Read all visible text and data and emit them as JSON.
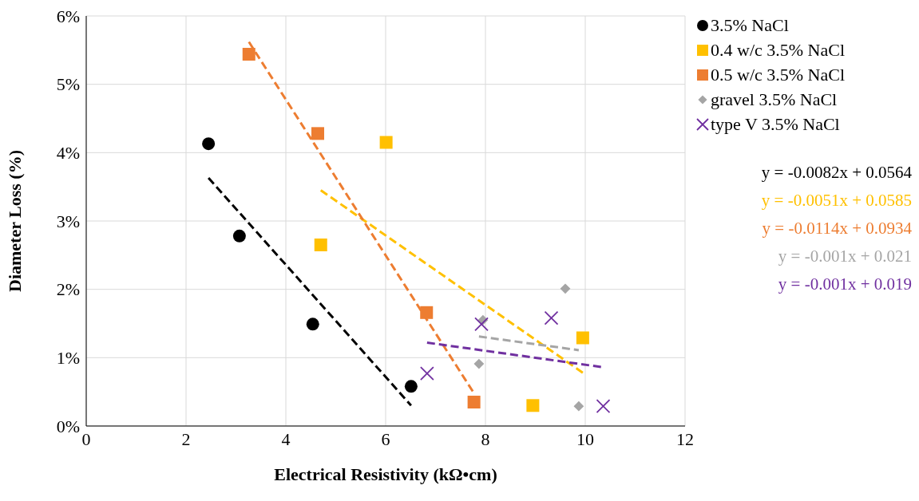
{
  "chart_data": {
    "type": "scatter",
    "xlabel": "Electrical Resistivity (kΩ•cm)",
    "ylabel": "Diameter Loss (%)",
    "xlim": [
      0,
      12
    ],
    "xticks": [
      0,
      2,
      4,
      6,
      8,
      10,
      12
    ],
    "ylim": [
      0,
      6
    ],
    "yticks": [
      {
        "value": 0,
        "label": "0%"
      },
      {
        "value": 1,
        "label": "1%"
      },
      {
        "value": 2,
        "label": "2%"
      },
      {
        "value": 3,
        "label": "3%"
      },
      {
        "value": 4,
        "label": "4%"
      },
      {
        "value": 5,
        "label": "5%"
      },
      {
        "value": 6,
        "label": "6%"
      }
    ],
    "grid": true,
    "legend": "right",
    "series": [
      {
        "name": "3.5% NaCl",
        "color": "#000000",
        "marker": "circle",
        "x": [
          2.45,
          3.07,
          4.54,
          6.51
        ],
        "values": [
          4.13,
          2.78,
          1.49,
          0.58
        ]
      },
      {
        "name": "0.4 w/c 3.5% NaCl",
        "color": "#ffc000",
        "marker": "square",
        "x": [
          6.01,
          4.7,
          9.95,
          8.95
        ],
        "values": [
          4.15,
          2.65,
          1.29,
          0.3
        ]
      },
      {
        "name": "0.5 w/c 3.5% NaCl",
        "color": "#ed7d31",
        "marker": "square",
        "x": [
          3.26,
          4.64,
          6.82,
          7.77
        ],
        "values": [
          5.44,
          4.28,
          1.66,
          0.35
        ]
      },
      {
        "name": "gravel 3.5% NaCl",
        "color": "#a5a5a5",
        "marker": "diamond",
        "x": [
          9.6,
          7.95,
          7.87,
          9.87
        ],
        "values": [
          2.01,
          1.55,
          0.91,
          0.29
        ]
      },
      {
        "name": "type V 3.5% NaCl",
        "color": "#7030a0",
        "marker": "cross",
        "x": [
          6.83,
          7.92,
          9.32,
          10.36
        ],
        "values": [
          0.77,
          1.49,
          1.58,
          0.29
        ]
      },
      {
        "type": "line",
        "color": "#000000",
        "line_style": "dashed",
        "marker": "none",
        "x": [
          2.45,
          6.51
        ],
        "values": [
          3.63,
          0.3
        ]
      },
      {
        "type": "line",
        "color": "#ffc000",
        "line_style": "dashed",
        "marker": "none",
        "x": [
          4.7,
          9.95
        ],
        "values": [
          3.45,
          0.78
        ]
      },
      {
        "type": "line",
        "color": "#ed7d31",
        "line_style": "dashed",
        "marker": "none",
        "x": [
          3.26,
          7.77
        ],
        "values": [
          5.62,
          0.48
        ]
      },
      {
        "type": "line",
        "color": "#a5a5a5",
        "line_style": "dashed",
        "marker": "none",
        "x": [
          7.87,
          9.87
        ],
        "values": [
          1.31,
          1.11
        ]
      },
      {
        "type": "line",
        "color": "#7030a0",
        "line_style": "dashed",
        "marker": "none",
        "x": [
          6.83,
          10.36
        ],
        "values": [
          1.22,
          0.86
        ]
      }
    ],
    "annotations": [
      "y = -0.0082x + 0.0564",
      "y = -0.0051x + 0.0585",
      "y = -0.0114x + 0.0934",
      "y = -0.001x + 0.021",
      "y = -0.001x + 0.019"
    ]
  }
}
